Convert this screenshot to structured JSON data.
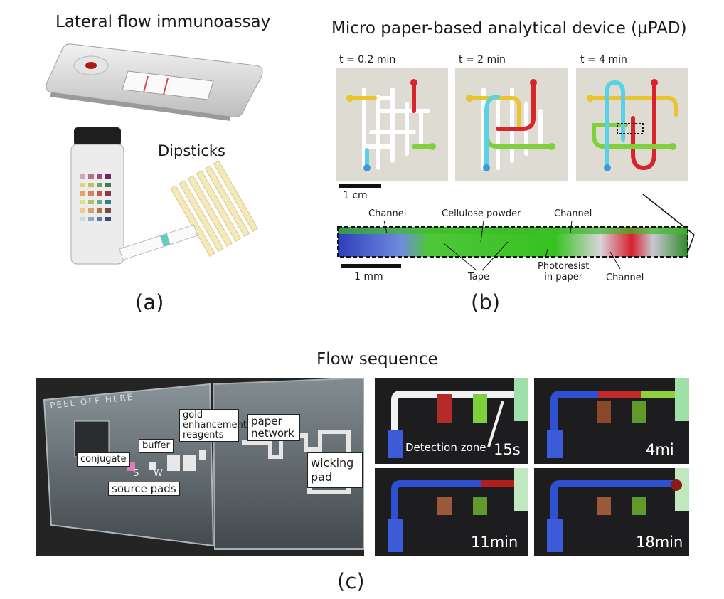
{
  "panel_a": {
    "title": "Lateral flow immunoassay",
    "dipsticks_label": "Dipsticks",
    "caption": "(a)"
  },
  "panel_b": {
    "title": "Micro paper-based analytical device (μPAD)",
    "times": [
      "t = 0.2 min",
      "t = 2 min",
      "t = 4 min"
    ],
    "scale_large": "1 cm",
    "scale_small": "1 mm",
    "labels": {
      "channel_left": "Channel",
      "cellulose": "Cellulose powder",
      "channel_top_right": "Channel",
      "tape": "Tape",
      "photoresist_line1": "Photoresist",
      "photoresist_line2": "in paper",
      "channel_bottom_right": "Channel"
    },
    "caption": "(b)"
  },
  "panel_c": {
    "title": "Flow sequence",
    "labels": {
      "gold_line1": "gold",
      "gold_line2": "enhancement",
      "gold_line3": "reagents",
      "paper_line1": "paper",
      "paper_line2": "network",
      "buffer": "buffer",
      "conjugate": "conjugate",
      "wicking_line1": "wicking",
      "wicking_line2": "pad",
      "source_pads": "source pads",
      "peel_text": "PEEL OFF HERE",
      "s_mark": "S",
      "w_mark": "W"
    },
    "detection_zone": "Detection zone",
    "frame_times": [
      "15s",
      "4mi",
      "11min",
      "18min"
    ],
    "caption": "(c)"
  },
  "colors": {
    "red": "#d8252b",
    "yellow": "#e8c52a",
    "cyan": "#5ad1e8",
    "green": "#7fd13b",
    "blue": "#3b5bd8",
    "dark_bg": "#1d1d1f"
  }
}
